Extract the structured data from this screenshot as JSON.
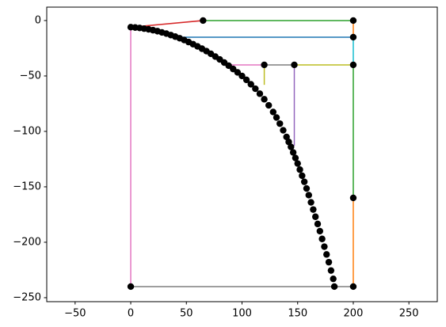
{
  "chart_data": {
    "type": "line",
    "xlim": [
      -75.5,
      275.5
    ],
    "ylim": [
      -253.6,
      12.1
    ],
    "xticks": [
      {
        "value": -50,
        "label": "−50"
      },
      0,
      50,
      100,
      150,
      200,
      250
    ],
    "yticks": [
      0,
      {
        "value": -50,
        "label": "−50"
      },
      {
        "value": -100,
        "label": "−100"
      },
      {
        "value": -150,
        "label": "−150"
      },
      {
        "value": -200,
        "label": "−200"
      },
      {
        "value": -250,
        "label": "−250"
      }
    ],
    "series": [
      {
        "color": "#d62728",
        "x": [
          0,
          65
        ],
        "values": [
          -6,
          0
        ]
      },
      {
        "color": "#2ca02c",
        "x": [
          65,
          200
        ],
        "values": [
          0,
          0
        ]
      },
      {
        "color": "#ff7f0e",
        "x": [
          200,
          200
        ],
        "values": [
          0,
          -15
        ]
      },
      {
        "color": "#1f77b4",
        "x": [
          200,
          40
        ],
        "values": [
          -15,
          -15
        ]
      },
      {
        "color": "#17becf",
        "x": [
          200,
          200
        ],
        "values": [
          -15,
          -40
        ]
      },
      {
        "color": "#bcbd22",
        "x": [
          200,
          147
        ],
        "values": [
          -40,
          -40
        ]
      },
      {
        "color": "#7f7f7f",
        "x": [
          147,
          120
        ],
        "values": [
          -40,
          -40
        ]
      },
      {
        "color": "#e377c2",
        "x": [
          120,
          88
        ],
        "values": [
          -40,
          -40
        ]
      },
      {
        "color": "#bcbd22",
        "x": [
          120,
          120
        ],
        "values": [
          -40,
          -58
        ]
      },
      {
        "color": "#9467bd",
        "x": [
          147,
          147
        ],
        "values": [
          -40,
          -113
        ]
      },
      {
        "color": "#2ca02c",
        "x": [
          200,
          200
        ],
        "values": [
          -40,
          -160
        ]
      },
      {
        "color": "#ff7f0e",
        "x": [
          200,
          200
        ],
        "values": [
          -160,
          -240
        ]
      },
      {
        "color": "#7f7f7f",
        "x": [
          200,
          0
        ],
        "values": [
          -240,
          -240
        ]
      },
      {
        "color": "#e377c2",
        "x": [
          0,
          0
        ],
        "values": [
          -240,
          -6
        ]
      }
    ],
    "points": {
      "color": "#000000",
      "x": [
        65,
        200,
        200,
        200,
        147,
        120,
        200,
        200,
        0,
        0,
        4,
        8,
        12,
        16,
        20,
        24,
        28,
        32,
        36,
        40,
        44,
        48,
        52,
        56,
        60,
        64,
        68,
        72,
        76,
        80,
        84,
        88,
        92,
        96,
        100,
        104,
        108,
        112,
        116,
        120,
        124,
        128,
        131,
        134,
        137,
        140,
        142,
        144,
        146,
        148,
        150,
        152,
        154,
        156,
        158,
        160,
        162,
        164,
        166,
        168,
        170,
        172,
        174,
        176,
        178,
        180,
        182,
        183
      ],
      "values": [
        0,
        0,
        -15,
        -40,
        -40,
        -40,
        -160,
        -240,
        -240,
        -6,
        -6.3,
        -6.7,
        -7.3,
        -7.9,
        -8.7,
        -9.6,
        -10.7,
        -11.8,
        -13.1,
        -14.5,
        -16,
        -17.6,
        -19.4,
        -21.3,
        -23.3,
        -25.4,
        -27.6,
        -30,
        -32.5,
        -35.1,
        -37.9,
        -40.7,
        -43.7,
        -46.8,
        -50,
        -53.5,
        -57.5,
        -61.5,
        -66,
        -71,
        -76.5,
        -82.5,
        -87.5,
        -93,
        -99,
        -105,
        -109.5,
        -114,
        -119,
        -124,
        -129,
        -134.5,
        -140,
        -145.5,
        -151.5,
        -157.5,
        -164,
        -170.5,
        -177,
        -183.5,
        -190,
        -197,
        -204,
        -211,
        -218,
        -225.5,
        -233,
        -240
      ]
    }
  }
}
